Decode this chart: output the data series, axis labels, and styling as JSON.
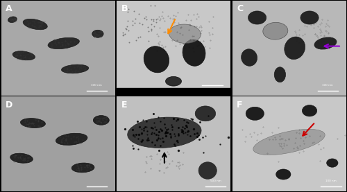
{
  "figsize": [
    5.0,
    2.77
  ],
  "dpi": 100,
  "panels": [
    "A",
    "B",
    "C",
    "D",
    "E",
    "F"
  ],
  "grid": [
    2,
    3
  ],
  "label_fontsize": 9,
  "label_fontweight": "bold"
}
